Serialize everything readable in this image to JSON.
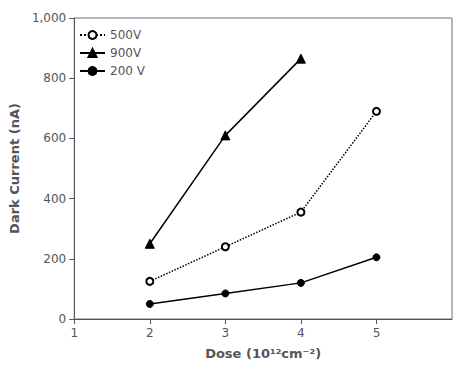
{
  "chart_data": {
    "type": "line",
    "xlabel": "Dose (10¹²cm⁻²)",
    "ylabel": "Dark Current (nA)",
    "xlim": [
      1,
      6
    ],
    "ylim": [
      0,
      1000
    ],
    "xticks": [
      1,
      2,
      3,
      4,
      5
    ],
    "yticks": [
      0,
      200,
      400,
      600,
      800,
      1000
    ],
    "grid": false,
    "legend": "upper left",
    "series": [
      {
        "name": "500V",
        "color": "#000000",
        "marker": "emptyCircle",
        "line_style": "dotted",
        "x": [
          2,
          3,
          4,
          5
        ],
        "values": [
          125,
          240,
          355,
          690
        ]
      },
      {
        "name": "900V",
        "color": "#000000",
        "marker": "triangle",
        "line_style": "solid",
        "x": [
          2,
          3,
          4
        ],
        "values": [
          250,
          610,
          865
        ]
      },
      {
        "name": "200 V",
        "color": "#000000",
        "marker": "circle",
        "line_style": "solid",
        "x": [
          2,
          3,
          4,
          5
        ],
        "values": [
          50,
          85,
          120,
          205
        ]
      }
    ]
  }
}
